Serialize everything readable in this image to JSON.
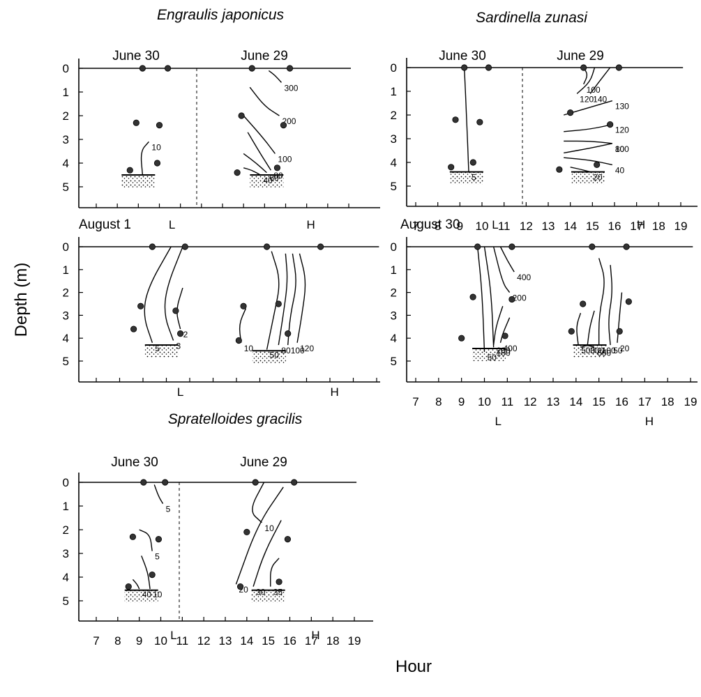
{
  "chart_data": {
    "type": "contour",
    "ylabel": "Depth (m)",
    "xlabel": "Hour",
    "depth_ticks": [
      "0",
      "1",
      "2",
      "3",
      "4",
      "5"
    ],
    "hour_ticks": [
      "7",
      "8",
      "9",
      "10",
      "11",
      "12",
      "13",
      "14",
      "15",
      "16",
      "17",
      "18",
      "19"
    ],
    "panels": [
      {
        "id": "engraulis",
        "species": "Engraulis japonicus",
        "survey_dates": [
          "June 30",
          "June 29"
        ],
        "tide_marks": [
          "L",
          "H"
        ],
        "sample_points": [
          [
            9.2,
            0
          ],
          [
            10.4,
            0
          ],
          [
            8.9,
            2.3
          ],
          [
            10.0,
            2.4
          ],
          [
            8.6,
            4.3
          ],
          [
            9.9,
            4.0
          ],
          [
            14.4,
            0
          ],
          [
            16.2,
            0
          ],
          [
            13.9,
            2.0
          ],
          [
            15.9,
            2.4
          ],
          [
            13.7,
            4.4
          ],
          [
            15.6,
            4.2
          ]
        ],
        "contours": [
          {
            "label": "10",
            "points": [
              [
                9.2,
                4.5
              ],
              [
                9.1,
                3.5
              ],
              [
                9.5,
                3.1
              ]
            ]
          },
          {
            "label": "300",
            "points": [
              [
                15.2,
                0.1
              ],
              [
                15.5,
                0.3
              ],
              [
                15.8,
                0.6
              ]
            ]
          },
          {
            "label": "200",
            "points": [
              [
                14.3,
                0.8
              ],
              [
                15.0,
                1.6
              ],
              [
                15.7,
                2.0
              ]
            ]
          },
          {
            "label": "100",
            "points": [
              [
                13.9,
                1.9
              ],
              [
                14.9,
                2.9
              ],
              [
                15.5,
                3.6
              ]
            ]
          },
          {
            "label": "80",
            "points": [
              [
                14.2,
                2.7
              ],
              [
                14.8,
                3.6
              ],
              [
                15.3,
                4.3
              ]
            ]
          },
          {
            "label": "60",
            "points": [
              [
                14.0,
                3.6
              ],
              [
                14.6,
                4.0
              ],
              [
                15.1,
                4.4
              ]
            ]
          },
          {
            "label": "40",
            "points": [
              [
                14.0,
                4.2
              ],
              [
                14.4,
                4.3
              ],
              [
                14.8,
                4.5
              ]
            ]
          }
        ]
      },
      {
        "id": "sardinella",
        "species": "Sardinella zunasi",
        "survey_dates": [
          "June 30",
          "June 29"
        ],
        "tide_marks": [
          "L",
          "H"
        ],
        "sample_points": [
          [
            9.2,
            0
          ],
          [
            10.3,
            0
          ],
          [
            8.8,
            2.2
          ],
          [
            9.9,
            2.3
          ],
          [
            8.6,
            4.2
          ],
          [
            9.6,
            4.0
          ],
          [
            14.6,
            0
          ],
          [
            16.2,
            0
          ],
          [
            14.0,
            1.9
          ],
          [
            15.8,
            2.4
          ],
          [
            13.5,
            4.3
          ],
          [
            15.2,
            4.1
          ]
        ],
        "contours": [
          {
            "label": "5",
            "points": [
              [
                9.2,
                0
              ],
              [
                9.3,
                2.0
              ],
              [
                9.4,
                4.4
              ]
            ]
          },
          {
            "label": "100",
            "points": [
              [
                14.6,
                0
              ],
              [
                14.8,
                0.3
              ],
              [
                14.6,
                0.7
              ]
            ]
          },
          {
            "label": "120",
            "points": [
              [
                15.1,
                0
              ],
              [
                14.9,
                0.6
              ],
              [
                14.3,
                1.1
              ]
            ]
          },
          {
            "label": "140",
            "points": [
              [
                15.8,
                0
              ],
              [
                15.3,
                0.6
              ],
              [
                14.9,
                1.1
              ]
            ]
          },
          {
            "label": "130",
            "points": [
              [
                13.7,
                2.0
              ],
              [
                14.8,
                1.7
              ],
              [
                15.9,
                1.4
              ]
            ]
          },
          {
            "label": "120",
            "points": [
              [
                13.7,
                2.7
              ],
              [
                14.9,
                2.6
              ],
              [
                15.9,
                2.4
              ]
            ]
          },
          {
            "label": "100",
            "points": [
              [
                13.7,
                3.1
              ],
              [
                14.9,
                3.1
              ],
              [
                15.9,
                3.2
              ]
            ]
          },
          {
            "label": "80",
            "points": [
              [
                13.7,
                3.6
              ],
              [
                14.9,
                3.4
              ],
              [
                15.9,
                3.2
              ]
            ]
          },
          {
            "label": "40",
            "points": [
              [
                13.7,
                3.8
              ],
              [
                14.9,
                3.9
              ],
              [
                15.9,
                4.1
              ]
            ]
          },
          {
            "label": "20",
            "points": [
              [
                14.0,
                4.2
              ],
              [
                14.5,
                4.3
              ],
              [
                14.9,
                4.4
              ]
            ]
          }
        ]
      },
      {
        "id": "engraulis_aug",
        "species": "",
        "survey_dates": [
          "August 1"
        ],
        "tide_marks": [
          "L",
          "H"
        ],
        "sample_points": [
          [
            9.4,
            0
          ],
          [
            10.8,
            0
          ],
          [
            8.9,
            2.6
          ],
          [
            10.4,
            2.8
          ],
          [
            8.6,
            3.6
          ],
          [
            10.6,
            3.8
          ],
          [
            14.3,
            0
          ],
          [
            16.6,
            0
          ],
          [
            13.3,
            2.6
          ],
          [
            14.8,
            2.5
          ],
          [
            13.1,
            4.1
          ],
          [
            15.2,
            3.8
          ]
        ],
        "contours": [
          {
            "label": "5",
            "points": [
              [
                10.2,
                0
              ],
              [
                9.2,
                1.8
              ],
              [
                9.0,
                3.0
              ],
              [
                9.4,
                4.2
              ]
            ]
          },
          {
            "label": "3",
            "points": [
              [
                10.7,
                0
              ],
              [
                10.0,
                1.8
              ],
              [
                9.9,
                3.0
              ],
              [
                10.3,
                4.1
              ]
            ]
          },
          {
            "label": "2",
            "points": [
              [
                10.7,
                1.8
              ],
              [
                10.4,
                2.8
              ],
              [
                10.6,
                3.6
              ]
            ]
          },
          {
            "label": "10",
            "points": [
              [
                13.4,
                2.7
              ],
              [
                13.1,
                3.4
              ],
              [
                13.2,
                4.2
              ]
            ]
          },
          {
            "label": "50",
            "points": [
              [
                14.5,
                0.2
              ],
              [
                14.9,
                1.5
              ],
              [
                14.6,
                3.0
              ],
              [
                14.3,
                4.5
              ]
            ]
          },
          {
            "label": "80",
            "points": [
              [
                15.1,
                0.3
              ],
              [
                15.2,
                1.5
              ],
              [
                15.0,
                3.0
              ],
              [
                14.8,
                4.3
              ]
            ]
          },
          {
            "label": "100",
            "points": [
              [
                15.4,
                0.3
              ],
              [
                15.6,
                1.6
              ],
              [
                15.3,
                3.0
              ],
              [
                15.2,
                4.3
              ]
            ]
          },
          {
            "label": "120",
            "points": [
              [
                15.7,
                0.3
              ],
              [
                16.0,
                1.5
              ],
              [
                15.8,
                3.0
              ],
              [
                15.6,
                4.2
              ]
            ]
          }
        ]
      },
      {
        "id": "sardinella_aug",
        "species": "",
        "survey_dates": [
          "August 30"
        ],
        "tide_marks": [
          "L",
          "H"
        ],
        "sample_points": [
          [
            9.7,
            0
          ],
          [
            11.2,
            0
          ],
          [
            9.5,
            2.2
          ],
          [
            11.2,
            2.3
          ],
          [
            9.0,
            4.0
          ],
          [
            10.9,
            3.9
          ],
          [
            14.7,
            0
          ],
          [
            16.2,
            0
          ],
          [
            14.3,
            2.5
          ],
          [
            16.3,
            2.4
          ],
          [
            13.8,
            3.7
          ],
          [
            15.9,
            3.7
          ]
        ],
        "contours": [
          {
            "label": "50",
            "points": [
              [
                9.7,
                0
              ],
              [
                9.9,
                2.0
              ],
              [
                10.0,
                4.6
              ]
            ]
          },
          {
            "label": "100",
            "points": [
              [
                10.0,
                0
              ],
              [
                10.3,
                2.0
              ],
              [
                10.4,
                4.4
              ]
            ]
          },
          {
            "label": "200",
            "points": [
              [
                10.4,
                0
              ],
              [
                10.8,
                1.6
              ],
              [
                11.1,
                2.0
              ]
            ]
          },
          {
            "label": "200",
            "points": [
              [
                10.8,
                2.6
              ],
              [
                10.5,
                3.5
              ],
              [
                10.4,
                4.3
              ]
            ]
          },
          {
            "label": "400",
            "points": [
              [
                10.7,
                0
              ],
              [
                11.0,
                0.6
              ],
              [
                11.3,
                1.1
              ]
            ]
          },
          {
            "label": "400",
            "points": [
              [
                11.1,
                3.1
              ],
              [
                10.8,
                3.8
              ],
              [
                10.7,
                4.2
              ]
            ]
          },
          {
            "label": "500",
            "points": [
              [
                14.2,
                2.9
              ],
              [
                14.0,
                3.5
              ],
              [
                14.1,
                4.3
              ]
            ]
          },
          {
            "label": "300",
            "points": [
              [
                14.8,
                2.8
              ],
              [
                14.6,
                3.5
              ],
              [
                14.5,
                4.3
              ]
            ]
          },
          {
            "label": "100",
            "points": [
              [
                15.0,
                0.5
              ],
              [
                15.3,
                1.5
              ],
              [
                15.0,
                3.0
              ],
              [
                15.0,
                4.3
              ]
            ]
          },
          {
            "label": "50",
            "points": [
              [
                15.5,
                0.8
              ],
              [
                15.6,
                2.0
              ],
              [
                15.4,
                3.2
              ],
              [
                15.5,
                4.3
              ]
            ]
          },
          {
            "label": "20",
            "points": [
              [
                16.0,
                2.0
              ],
              [
                15.9,
                3.0
              ],
              [
                15.8,
                4.2
              ]
            ]
          },
          {
            "label": "600",
            "points": [
              [
                14.2,
                4.4
              ],
              [
                14.5,
                4.3
              ],
              [
                14.8,
                4.4
              ]
            ]
          }
        ]
      },
      {
        "id": "spratelloides",
        "species": "Spratelloides gracilis",
        "survey_dates": [
          "June 30",
          "June 29"
        ],
        "tide_marks": [
          "L",
          "H"
        ],
        "sample_points": [
          [
            9.2,
            0
          ],
          [
            10.2,
            0
          ],
          [
            8.7,
            2.3
          ],
          [
            9.9,
            2.4
          ],
          [
            8.5,
            4.4
          ],
          [
            9.6,
            3.9
          ],
          [
            14.4,
            0
          ],
          [
            16.2,
            0
          ],
          [
            14.0,
            2.1
          ],
          [
            15.9,
            2.4
          ],
          [
            13.7,
            4.4
          ],
          [
            15.5,
            4.2
          ]
        ],
        "contours": [
          {
            "label": "5",
            "points": [
              [
                9.7,
                0.1
              ],
              [
                9.9,
                0.6
              ],
              [
                10.1,
                0.9
              ]
            ]
          },
          {
            "label": "5",
            "points": [
              [
                9.0,
                2.0
              ],
              [
                9.5,
                2.2
              ],
              [
                9.6,
                2.9
              ]
            ]
          },
          {
            "label": "10",
            "points": [
              [
                9.1,
                3.1
              ],
              [
                9.4,
                3.8
              ],
              [
                9.5,
                4.5
              ]
            ]
          },
          {
            "label": "40",
            "points": [
              [
                8.7,
                4.1
              ],
              [
                8.9,
                4.3
              ],
              [
                9.0,
                4.5
              ]
            ]
          },
          {
            "label": "10",
            "points": [
              [
                14.8,
                0
              ],
              [
                14.1,
                1.2
              ],
              [
                14.7,
                1.7
              ]
            ]
          },
          {
            "label": "20",
            "points": [
              [
                15.7,
                0.2
              ],
              [
                14.5,
                1.8
              ],
              [
                13.5,
                4.3
              ]
            ]
          },
          {
            "label": "30",
            "points": [
              [
                15.6,
                1.6
              ],
              [
                14.8,
                3.0
              ],
              [
                14.3,
                4.4
              ]
            ]
          },
          {
            "label": "35",
            "points": [
              [
                15.5,
                3.2
              ],
              [
                15.1,
                3.6
              ],
              [
                15.1,
                4.4
              ]
            ]
          }
        ]
      }
    ]
  }
}
